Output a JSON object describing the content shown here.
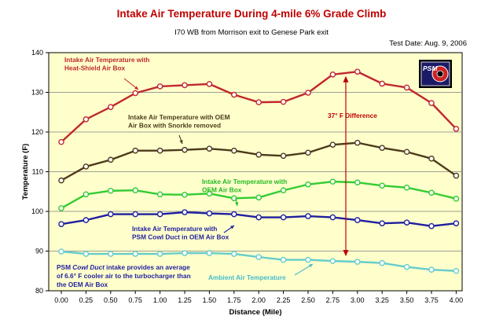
{
  "title": "Intake Air Temperature During 4-mile 6% Grade Climb",
  "subtitle": "I70 WB from Morrison exit to Genese Park exit",
  "test_date": "Test Date:  Aug. 9, 2006",
  "difference_label": "37° F Difference",
  "logo_text": "PSM",
  "footnote": [
    "PSM ",
    "Cowl Duct",
    " intake provides an average",
    "of 6.6° F cooler air to the turbocharger than",
    "the OEM Air Box"
  ],
  "colors": {
    "plot_bg": "#ffffcc",
    "heat_shield": "#c0282d",
    "oem_snorkle": "#4d3a1a",
    "oem": "#33cc33",
    "psm_cowl": "#1f1fa0",
    "ambient": "#66cccc",
    "difference_arrow": "#c00000"
  },
  "chart_data": {
    "type": "line",
    "title": "Intake Air Temperature During 4-mile 6% Grade Climb",
    "xlabel": "Distance (Mile)",
    "ylabel": "Temperature (F)",
    "xlim": [
      -0.15,
      4.12
    ],
    "ylim": [
      80,
      140
    ],
    "grid": true,
    "x": [
      0.0,
      0.25,
      0.5,
      0.75,
      1.0,
      1.25,
      1.5,
      1.75,
      2.0,
      2.25,
      2.5,
      2.75,
      3.0,
      3.25,
      3.5,
      3.75,
      4.0
    ],
    "x_tick_labels": [
      "0.00",
      "0.25",
      "0.50",
      "0.75",
      "1.00",
      "1.25",
      "1.50",
      "1.75",
      "2.00",
      "2.25",
      "2.50",
      "2.75",
      "3.00",
      "3.25",
      "3.50",
      "3.75",
      "4.00"
    ],
    "y_ticks": [
      80,
      90,
      100,
      110,
      120,
      130,
      140
    ],
    "series": [
      {
        "label_lines": [
          "Intake Air Temperature with",
          "Heat-Shield Air Box"
        ],
        "values": [
          117.5,
          123.2,
          126.3,
          129.8,
          131.5,
          131.8,
          132.1,
          129.4,
          127.5,
          127.6,
          129.9,
          134.5,
          135.2,
          132.2,
          131.2,
          127.3,
          120.8
        ]
      },
      {
        "label_lines": [
          "Intake Air Temperature with OEM",
          "Air Box with Snorkle removed"
        ],
        "values": [
          107.8,
          111.3,
          113.0,
          115.3,
          115.3,
          115.5,
          115.8,
          115.3,
          114.3,
          114.0,
          114.8,
          116.8,
          117.3,
          116.0,
          115.0,
          113.3,
          109.0
        ]
      },
      {
        "label_lines": [
          "Intake Air Temperature with",
          "OEM Air Box"
        ],
        "values": [
          100.8,
          104.3,
          105.2,
          105.3,
          104.3,
          104.2,
          104.5,
          103.3,
          103.5,
          105.3,
          106.8,
          107.5,
          107.3,
          106.5,
          106.0,
          104.7,
          103.2
        ]
      },
      {
        "label_lines": [
          "Intake Air Temperature with",
          "PSM Cowl Duct in OEM Air Box"
        ],
        "values": [
          96.8,
          97.8,
          99.3,
          99.3,
          99.3,
          99.8,
          99.5,
          99.3,
          98.5,
          98.5,
          98.8,
          98.5,
          97.8,
          97.0,
          97.2,
          96.3,
          97.0
        ]
      },
      {
        "label_lines": [
          "Ambient Air Temperature"
        ],
        "values": [
          89.9,
          89.3,
          89.3,
          89.3,
          89.3,
          89.5,
          89.5,
          89.3,
          88.5,
          87.8,
          87.8,
          87.5,
          87.3,
          87.0,
          86.0,
          85.3,
          85.0
        ]
      }
    ]
  }
}
